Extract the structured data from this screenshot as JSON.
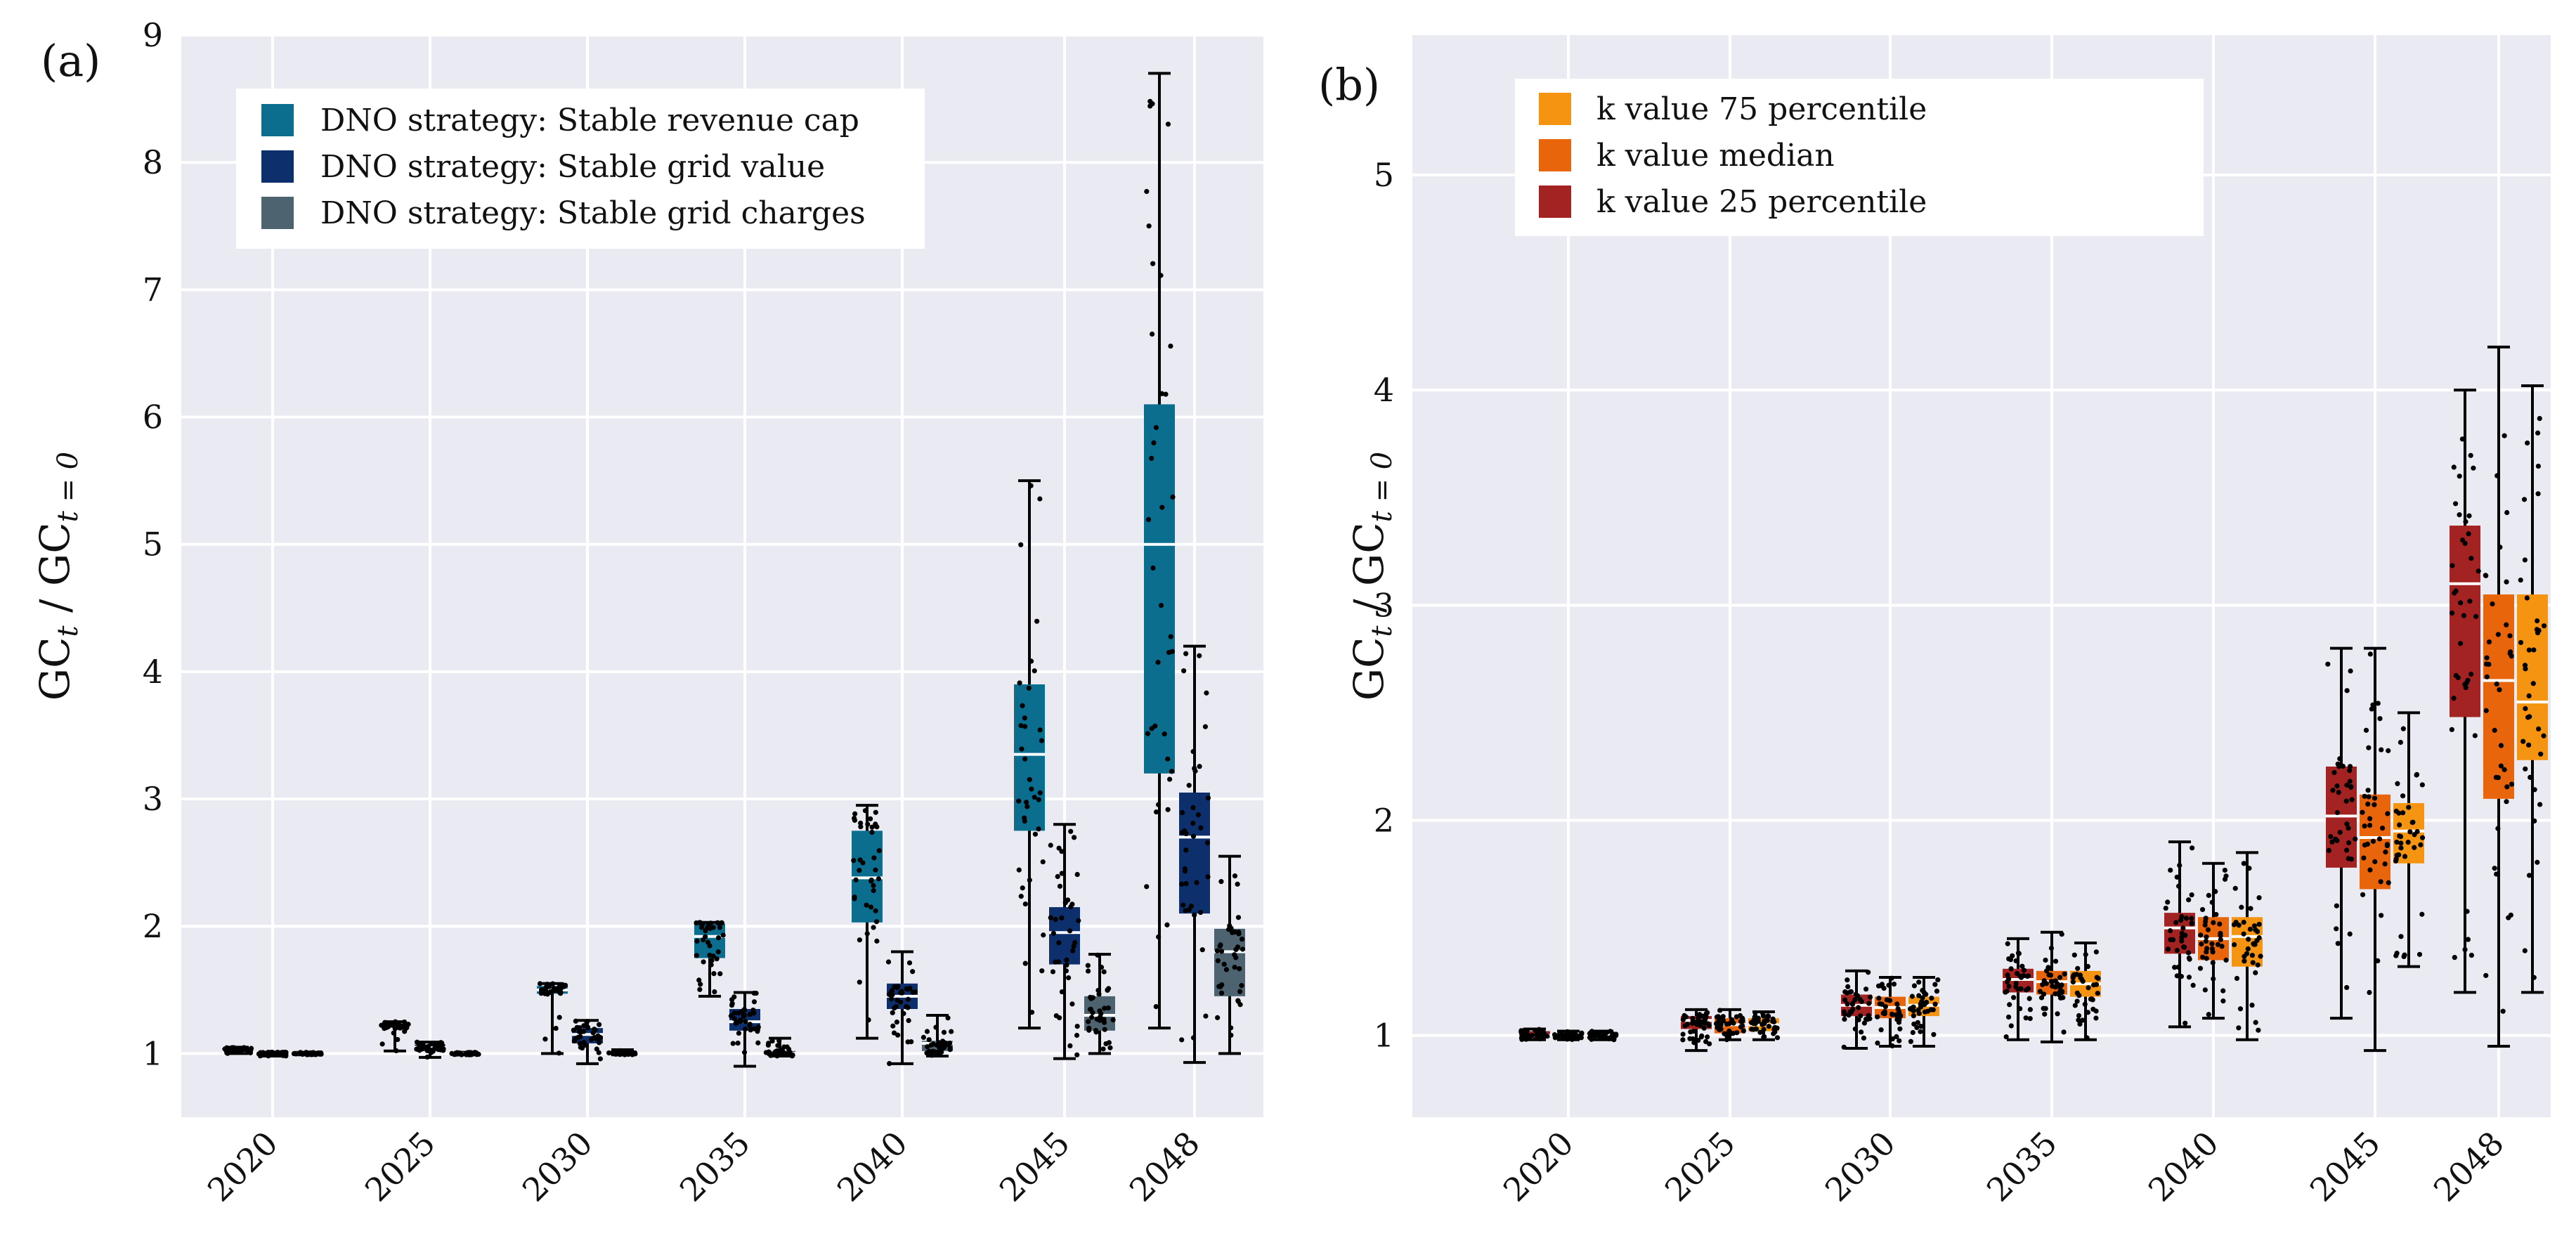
{
  "colors": {
    "plot_bg": "#eaeaf2",
    "grid": "#ffffff",
    "median": "#ffffff",
    "whisker": "#000000",
    "dots": "#000000"
  },
  "chart_data": [
    {
      "type": "box",
      "panel_label": "(a)",
      "ylabel_main": "GC",
      "ylabel_sub1": "t",
      "ylabel_mid": " / GC",
      "ylabel_sub2": "t = 0",
      "ylim": [
        0.5,
        9.0
      ],
      "yticks": [
        "1",
        "2",
        "3",
        "4",
        "5",
        "6",
        "7",
        "8",
        "9"
      ],
      "ytick_values": [
        1,
        2,
        3,
        4,
        5,
        6,
        7,
        8,
        9
      ],
      "categories": [
        "2020",
        "2025",
        "2030",
        "2035",
        "2040",
        "2045",
        "2048"
      ],
      "legend_position": "top-left",
      "series": [
        {
          "name": "DNO strategy: Stable revenue cap",
          "color": "#0b6e8f",
          "boxes": [
            {
              "min": 1.0,
              "q1": 1.01,
              "median": 1.02,
              "q3": 1.04,
              "max": 1.05
            },
            {
              "min": 1.02,
              "q1": 1.2,
              "median": 1.21,
              "q3": 1.23,
              "max": 1.25
            },
            {
              "min": 1.0,
              "q1": 1.47,
              "median": 1.5,
              "q3": 1.53,
              "max": 1.55
            },
            {
              "min": 1.45,
              "q1": 1.75,
              "median": 1.92,
              "q3": 2.02,
              "max": 2.03
            },
            {
              "min": 1.12,
              "q1": 2.03,
              "median": 2.38,
              "q3": 2.75,
              "max": 2.95
            },
            {
              "min": 1.2,
              "q1": 2.75,
              "median": 3.35,
              "q3": 3.9,
              "max": 5.5
            },
            {
              "min": 1.2,
              "q1": 3.2,
              "median": 5.0,
              "q3": 6.1,
              "max": 8.7
            }
          ]
        },
        {
          "name": "DNO strategy: Stable grid value",
          "color": "#0d2f6b",
          "boxes": [
            {
              "min": 0.98,
              "q1": 0.99,
              "median": 1.0,
              "q3": 1.01,
              "max": 1.01
            },
            {
              "min": 0.97,
              "q1": 1.02,
              "median": 1.05,
              "q3": 1.07,
              "max": 1.09
            },
            {
              "min": 0.92,
              "q1": 1.08,
              "median": 1.15,
              "q3": 1.2,
              "max": 1.26
            },
            {
              "min": 0.9,
              "q1": 1.18,
              "median": 1.25,
              "q3": 1.35,
              "max": 1.48
            },
            {
              "min": 0.92,
              "q1": 1.35,
              "median": 1.45,
              "q3": 1.55,
              "max": 1.8
            },
            {
              "min": 0.96,
              "q1": 1.7,
              "median": 1.95,
              "q3": 2.15,
              "max": 2.8
            },
            {
              "min": 0.93,
              "q1": 2.1,
              "median": 2.7,
              "q3": 3.05,
              "max": 4.2
            }
          ]
        },
        {
          "name": "DNO strategy: Stable grid charges",
          "color": "#4d6470",
          "boxes": [
            {
              "min": 0.99,
              "q1": 0.995,
              "median": 1.0,
              "q3": 1.005,
              "max": 1.01
            },
            {
              "min": 0.99,
              "q1": 0.995,
              "median": 1.0,
              "q3": 1.005,
              "max": 1.01
            },
            {
              "min": 0.99,
              "q1": 0.995,
              "median": 1.0,
              "q3": 1.005,
              "max": 1.03
            },
            {
              "min": 0.98,
              "q1": 0.99,
              "median": 1.0,
              "q3": 1.02,
              "max": 1.12
            },
            {
              "min": 0.98,
              "q1": 1.02,
              "median": 1.08,
              "q3": 1.1,
              "max": 1.3
            },
            {
              "min": 1.0,
              "q1": 1.18,
              "median": 1.3,
              "q3": 1.45,
              "max": 1.78
            },
            {
              "min": 1.0,
              "q1": 1.45,
              "median": 1.8,
              "q3": 1.98,
              "max": 2.55
            }
          ]
        }
      ]
    },
    {
      "type": "box",
      "panel_label": "(b)",
      "ylabel_main": "GC",
      "ylabel_sub1": "t",
      "ylabel_mid": " / GC",
      "ylabel_sub2": "t = 0",
      "ylim": [
        0.62,
        5.65
      ],
      "yticks": [
        "1",
        "2",
        "3",
        "4",
        "5"
      ],
      "ytick_values": [
        1,
        2,
        3,
        4,
        5
      ],
      "categories": [
        "2020",
        "2025",
        "2030",
        "2035",
        "2040",
        "2045",
        "2048"
      ],
      "legend_position": "top-left",
      "legend_order": [
        2,
        1,
        0
      ],
      "series": [
        {
          "name": "k value 25 percentile",
          "color": "#a32222",
          "boxes": [
            {
              "min": 0.98,
              "q1": 0.99,
              "median": 1.0,
              "q3": 1.02,
              "max": 1.03
            },
            {
              "min": 0.93,
              "q1": 1.03,
              "median": 1.07,
              "q3": 1.09,
              "max": 1.12
            },
            {
              "min": 0.94,
              "q1": 1.09,
              "median": 1.14,
              "q3": 1.19,
              "max": 1.3
            },
            {
              "min": 0.98,
              "q1": 1.2,
              "median": 1.26,
              "q3": 1.31,
              "max": 1.45
            },
            {
              "min": 1.04,
              "q1": 1.38,
              "median": 1.5,
              "q3": 1.57,
              "max": 1.9
            },
            {
              "min": 1.08,
              "q1": 1.78,
              "median": 2.02,
              "q3": 2.25,
              "max": 2.8
            },
            {
              "min": 1.2,
              "q1": 2.48,
              "median": 3.1,
              "q3": 3.37,
              "max": 4.0
            }
          ]
        },
        {
          "name": "k value median",
          "color": "#e8650b",
          "boxes": [
            {
              "min": 0.98,
              "q1": 0.99,
              "median": 1.0,
              "q3": 1.01,
              "max": 1.02
            },
            {
              "min": 0.98,
              "q1": 1.01,
              "median": 1.05,
              "q3": 1.08,
              "max": 1.12
            },
            {
              "min": 0.95,
              "q1": 1.08,
              "median": 1.13,
              "q3": 1.18,
              "max": 1.27
            },
            {
              "min": 0.97,
              "q1": 1.19,
              "median": 1.25,
              "q3": 1.3,
              "max": 1.48
            },
            {
              "min": 1.08,
              "q1": 1.35,
              "median": 1.45,
              "q3": 1.55,
              "max": 1.8
            },
            {
              "min": 0.93,
              "q1": 1.68,
              "median": 1.92,
              "q3": 2.12,
              "max": 2.8
            },
            {
              "min": 0.95,
              "q1": 2.1,
              "median": 2.65,
              "q3": 3.05,
              "max": 4.2
            }
          ]
        },
        {
          "name": "k value 75 percentile",
          "color": "#f59410",
          "boxes": [
            {
              "min": 0.98,
              "q1": 0.99,
              "median": 1.0,
              "q3": 1.01,
              "max": 1.02
            },
            {
              "min": 0.98,
              "q1": 1.02,
              "median": 1.05,
              "q3": 1.08,
              "max": 1.11
            },
            {
              "min": 0.95,
              "q1": 1.09,
              "median": 1.14,
              "q3": 1.18,
              "max": 1.27
            },
            {
              "min": 0.98,
              "q1": 1.18,
              "median": 1.24,
              "q3": 1.3,
              "max": 1.43
            },
            {
              "min": 0.98,
              "q1": 1.32,
              "median": 1.46,
              "q3": 1.55,
              "max": 1.85
            },
            {
              "min": 1.32,
              "q1": 1.8,
              "median": 1.95,
              "q3": 2.08,
              "max": 2.5
            },
            {
              "min": 1.2,
              "q1": 2.28,
              "median": 2.55,
              "q3": 3.05,
              "max": 4.02
            }
          ]
        }
      ]
    }
  ]
}
